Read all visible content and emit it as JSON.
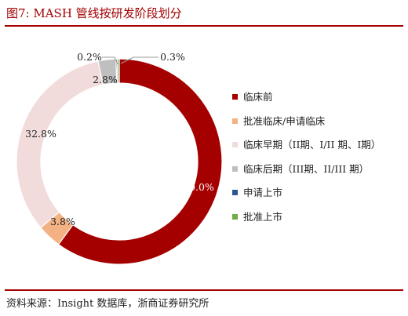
{
  "figure": {
    "title": "图7:   MASH 管线按研发阶段划分",
    "source": "资料来源：Insight 数据库，浙商证券研究所"
  },
  "chart_data": {
    "type": "pie",
    "donut": true,
    "title": "",
    "legend_position": "right",
    "slices": [
      {
        "name": "临床前",
        "value": 60.0,
        "label": "60.0%",
        "color": "#a50000"
      },
      {
        "name": "批准临床/申请临床",
        "value": 3.8,
        "label": "3.8%",
        "color": "#f4b183"
      },
      {
        "name": "临床早期（II期、I/II 期、I期）",
        "value": 32.8,
        "label": "32.8%",
        "color": "#f2dcdb"
      },
      {
        "name": "临床后期（III期、II/III 期）",
        "value": 2.8,
        "label": "2.8%",
        "color": "#bfbfbf"
      },
      {
        "name": "申请上市",
        "value": 0.2,
        "label": "0.2%",
        "color": "#2f5597"
      },
      {
        "name": "批准上市",
        "value": 0.3,
        "label": "0.3%",
        "color": "#70ad47"
      }
    ]
  }
}
